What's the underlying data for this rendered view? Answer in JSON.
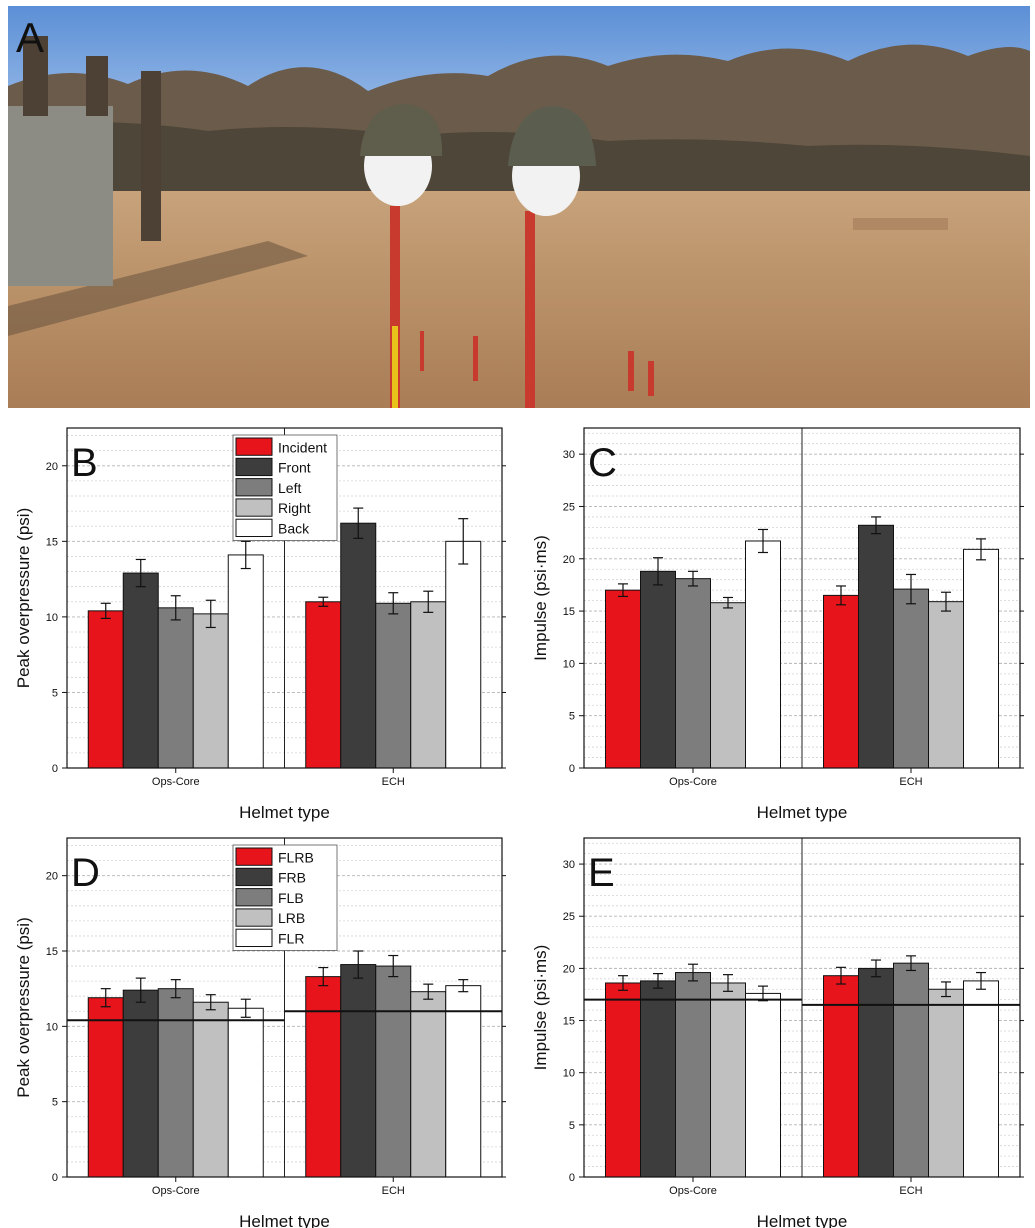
{
  "photo": {
    "panel_label": "A"
  },
  "colors": {
    "red": "#e8141b",
    "dark": "#3d3d3d",
    "mid": "#7d7d7d",
    "light": "#c0c0c0",
    "white": "#ffffff"
  },
  "chart_data": [
    {
      "type": "bar",
      "panel_label": "B",
      "categories": [
        "Ops-Core",
        "ECH"
      ],
      "xlabel": "Helmet type",
      "ylabel": "Peak overpressure (psi)",
      "ylim": [
        0,
        22.5
      ],
      "yticks": [
        0,
        5,
        10,
        15,
        20
      ],
      "grid": true,
      "legend": "top-center",
      "series": [
        {
          "name": "Incident",
          "color": "#e8141b",
          "values": [
            10.4,
            11.0
          ],
          "errors": [
            0.5,
            0.3
          ]
        },
        {
          "name": "Front",
          "color": "#3d3d3d",
          "values": [
            12.9,
            16.2
          ],
          "errors": [
            0.9,
            1.0
          ]
        },
        {
          "name": "Left",
          "color": "#7d7d7d",
          "values": [
            10.6,
            10.9
          ],
          "errors": [
            0.8,
            0.7
          ]
        },
        {
          "name": "Right",
          "color": "#c0c0c0",
          "values": [
            10.2,
            11.0
          ],
          "errors": [
            0.9,
            0.7
          ]
        },
        {
          "name": "Back",
          "color": "#ffffff",
          "values": [
            14.1,
            15.0
          ],
          "errors": [
            0.9,
            1.5
          ]
        }
      ]
    },
    {
      "type": "bar",
      "panel_label": "C",
      "categories": [
        "Ops-Core",
        "ECH"
      ],
      "xlabel": "Helmet type",
      "ylabel": "Impulse (psi·ms)",
      "ylim": [
        0,
        32.5
      ],
      "yticks": [
        0,
        5,
        10,
        15,
        20,
        25,
        30
      ],
      "grid": true,
      "legend": "",
      "series": [
        {
          "name": "",
          "color": "#e8141b",
          "values": [
            17.0,
            16.5
          ],
          "errors": [
            0.6,
            0.9
          ]
        },
        {
          "name": "",
          "color": "#3d3d3d",
          "values": [
            18.8,
            23.2
          ],
          "errors": [
            1.3,
            0.8
          ]
        },
        {
          "name": "",
          "color": "#7d7d7d",
          "values": [
            18.1,
            17.1
          ],
          "errors": [
            0.7,
            1.4
          ]
        },
        {
          "name": "",
          "color": "#c0c0c0",
          "values": [
            15.8,
            15.9
          ],
          "errors": [
            0.5,
            0.9
          ]
        },
        {
          "name": "",
          "color": "#ffffff",
          "values": [
            21.7,
            20.9
          ],
          "errors": [
            1.1,
            1.0
          ]
        }
      ]
    },
    {
      "type": "bar",
      "panel_label": "D",
      "categories": [
        "Ops-Core",
        "ECH"
      ],
      "xlabel": "Helmet type",
      "ylabel": "Peak overpressure (psi)",
      "ylim": [
        0,
        22.5
      ],
      "yticks": [
        0,
        5,
        10,
        15,
        20
      ],
      "grid": true,
      "legend": "top-center",
      "reference_lines": [
        10.4,
        11.0
      ],
      "series": [
        {
          "name": "FLRB",
          "color": "#e8141b",
          "values": [
            11.9,
            13.3
          ],
          "errors": [
            0.6,
            0.6
          ]
        },
        {
          "name": "FRB",
          "color": "#3d3d3d",
          "values": [
            12.4,
            14.1
          ],
          "errors": [
            0.8,
            0.9
          ]
        },
        {
          "name": "FLB",
          "color": "#7d7d7d",
          "values": [
            12.5,
            14.0
          ],
          "errors": [
            0.6,
            0.7
          ]
        },
        {
          "name": "LRB",
          "color": "#c0c0c0",
          "values": [
            11.6,
            12.3
          ],
          "errors": [
            0.5,
            0.5
          ]
        },
        {
          "name": "FLR",
          "color": "#ffffff",
          "values": [
            11.2,
            12.7
          ],
          "errors": [
            0.6,
            0.4
          ]
        }
      ]
    },
    {
      "type": "bar",
      "panel_label": "E",
      "categories": [
        "Ops-Core",
        "ECH"
      ],
      "xlabel": "Helmet type",
      "ylabel": "Impulse (psi·ms)",
      "ylim": [
        0,
        32.5
      ],
      "yticks": [
        0,
        5,
        10,
        15,
        20,
        25,
        30
      ],
      "grid": true,
      "legend": "",
      "reference_lines": [
        17.0,
        16.5
      ],
      "series": [
        {
          "name": "",
          "color": "#e8141b",
          "values": [
            18.6,
            19.3
          ],
          "errors": [
            0.7,
            0.8
          ]
        },
        {
          "name": "",
          "color": "#3d3d3d",
          "values": [
            18.8,
            20.0
          ],
          "errors": [
            0.7,
            0.8
          ]
        },
        {
          "name": "",
          "color": "#7d7d7d",
          "values": [
            19.6,
            20.5
          ],
          "errors": [
            0.8,
            0.7
          ]
        },
        {
          "name": "",
          "color": "#c0c0c0",
          "values": [
            18.6,
            18.0
          ],
          "errors": [
            0.8,
            0.7
          ]
        },
        {
          "name": "",
          "color": "#ffffff",
          "values": [
            17.6,
            18.8
          ],
          "errors": [
            0.7,
            0.8
          ]
        }
      ]
    }
  ]
}
